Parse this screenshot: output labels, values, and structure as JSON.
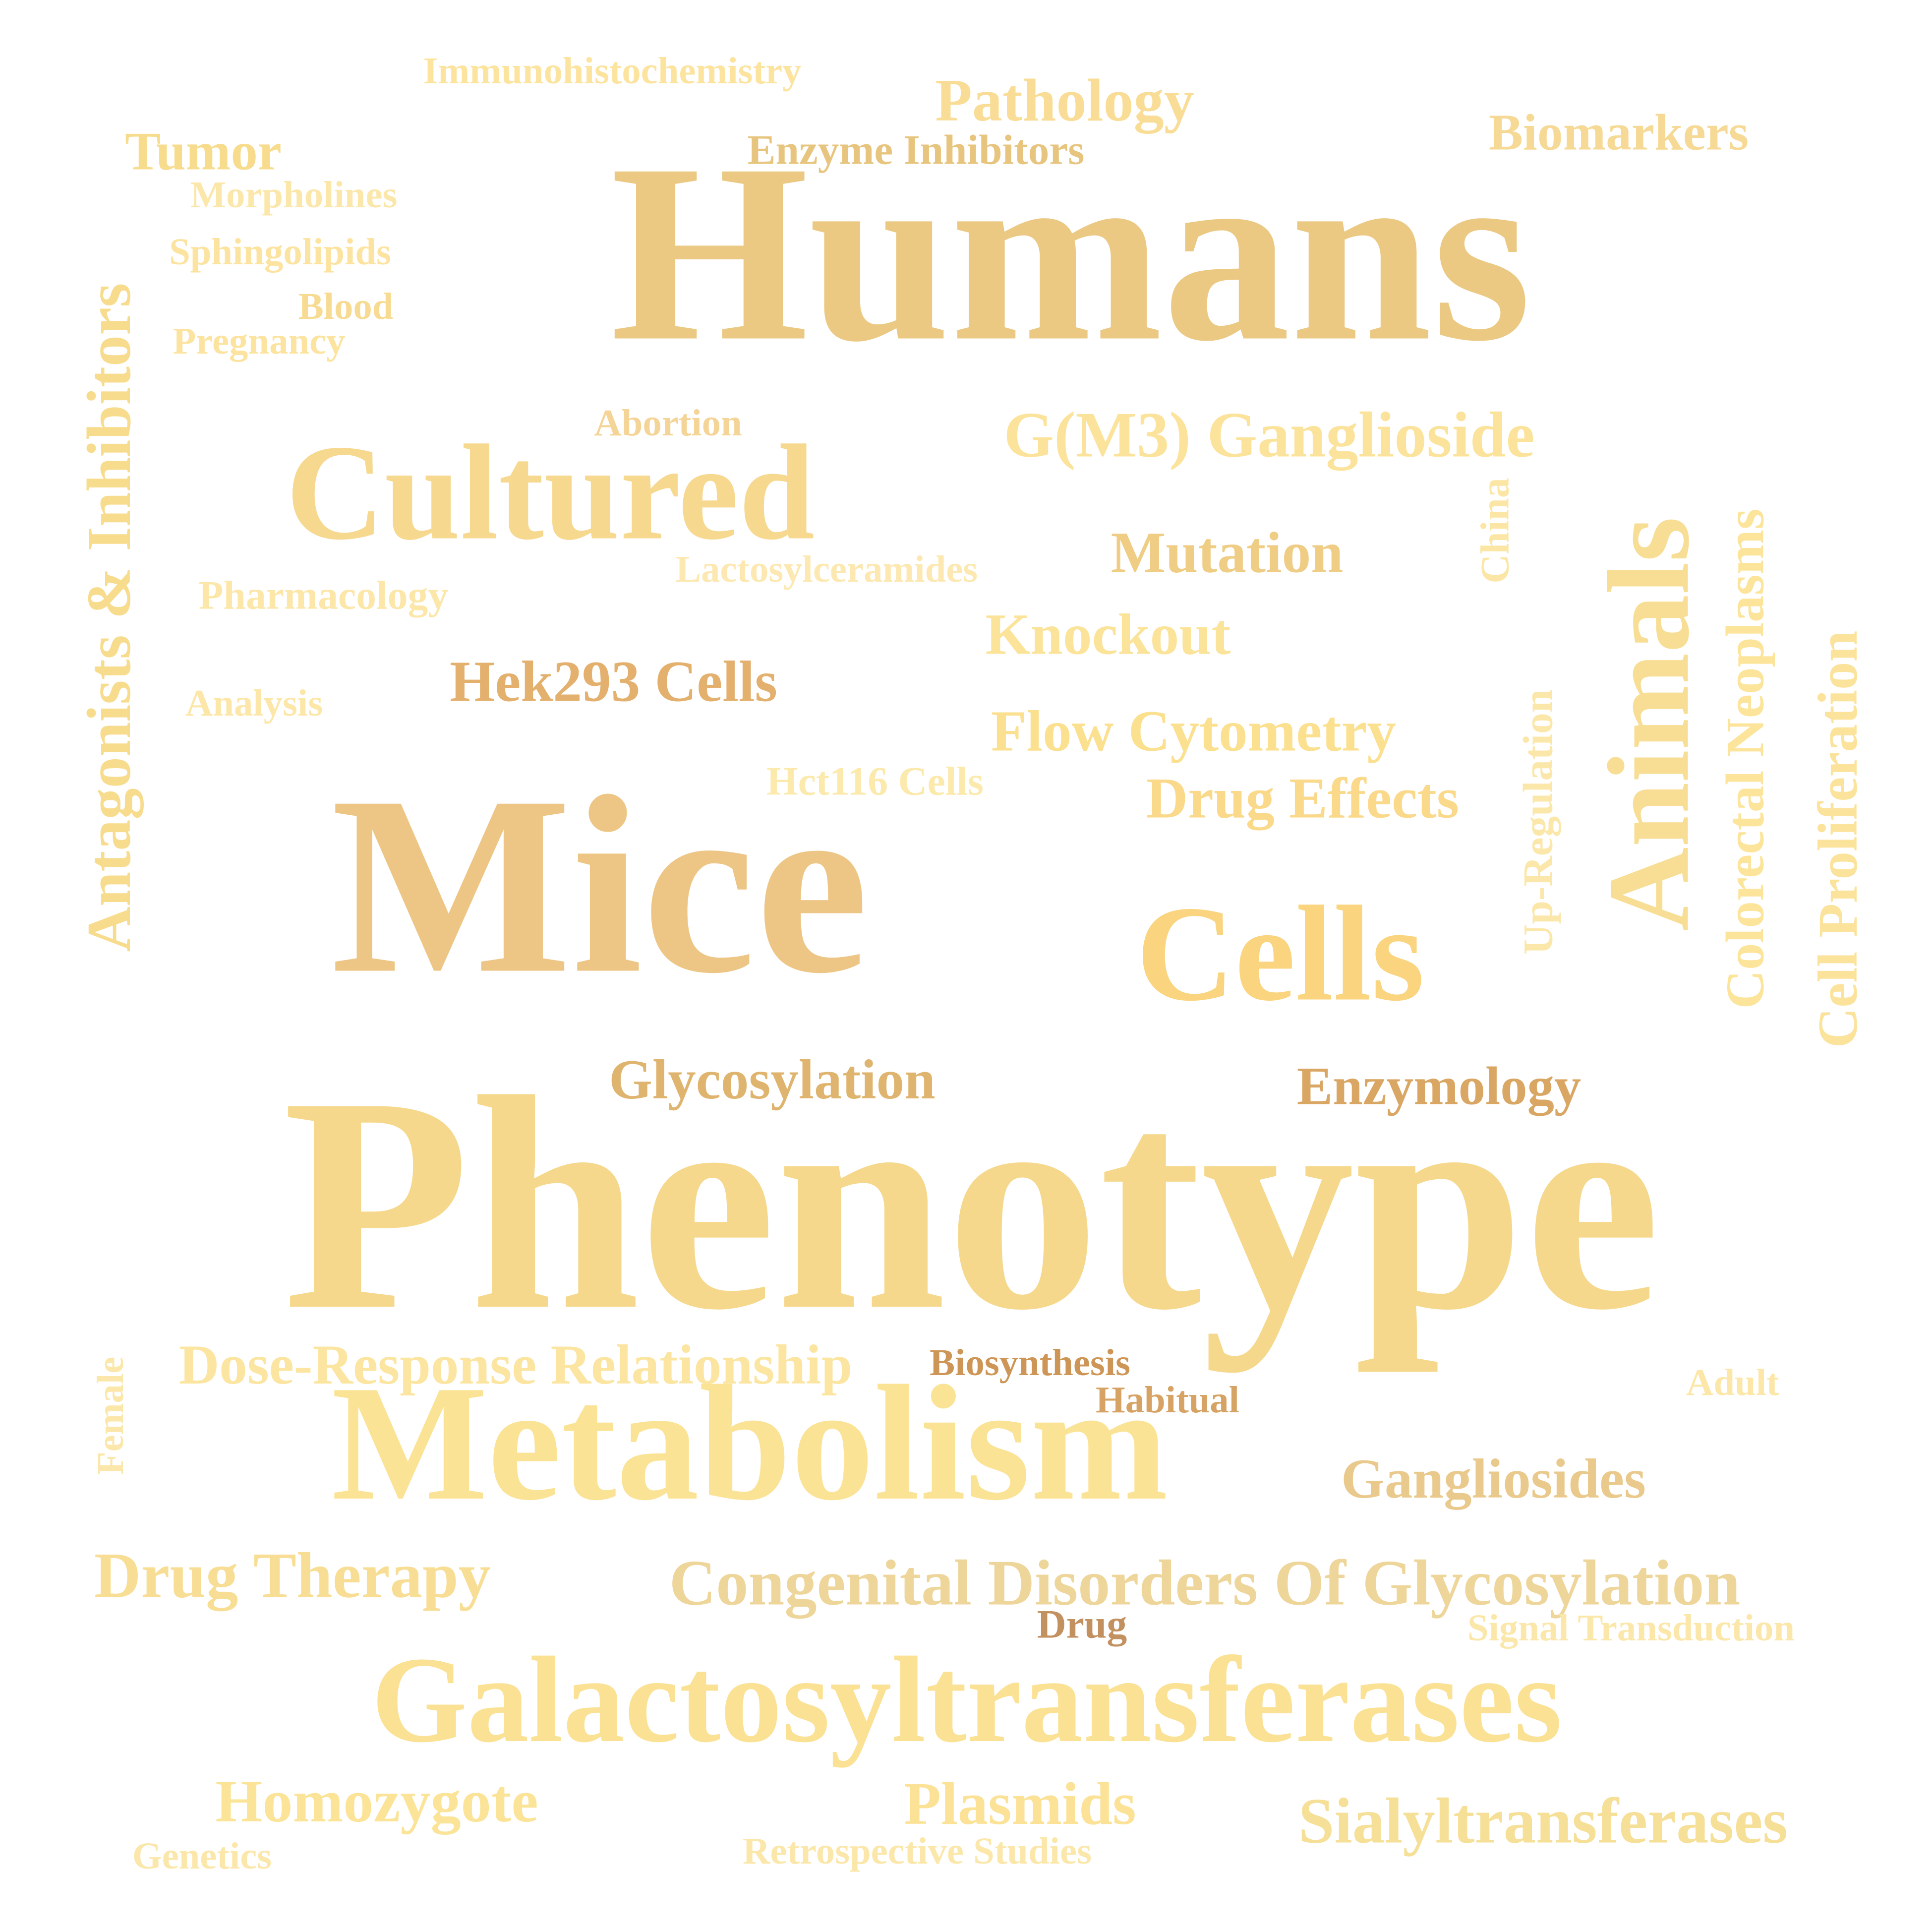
{
  "palette": {
    "gold": "#EBC983",
    "light_gold": "#F8DC8E",
    "pale_yellow": "#FBE49A",
    "amber": "#E7B86E",
    "tan": "#D9A868",
    "brown": "#C59259"
  },
  "words": [
    {
      "id": "humans",
      "text": "Humans",
      "color": "#EBC983"
    },
    {
      "id": "phenotype",
      "text": "Phenotype",
      "color": "#F5D88C"
    },
    {
      "id": "mice",
      "text": "Mice",
      "color": "#EDC685"
    },
    {
      "id": "galactosyltransferases",
      "text": "Galactosyltransferases",
      "color": "#FBE193"
    },
    {
      "id": "metabolism",
      "text": "Metabolism",
      "color": "#FBE396"
    },
    {
      "id": "cultured",
      "text": "Cultured",
      "color": "#F6D88E"
    },
    {
      "id": "animals",
      "text": "Animals",
      "color": "#F7DE94"
    },
    {
      "id": "cells",
      "text": "Cells",
      "color": "#FAD47E"
    },
    {
      "id": "congenital-disorders",
      "text": "Congenital Disorders Of Glycosylation",
      "color": "#EED69B"
    },
    {
      "id": "gm3-ganglioside",
      "text": "G(M3) Ganglioside",
      "color": "#FCE39B"
    },
    {
      "id": "antagonists-inhibitors",
      "text": "Antagonists & Inhibitors",
      "color": "#F8DC8E"
    },
    {
      "id": "drug-therapy",
      "text": "Drug Therapy",
      "color": "#F8DE94"
    },
    {
      "id": "dose-response",
      "text": "Dose-Response Relationship",
      "color": "#FBE5A0"
    },
    {
      "id": "sialyltransferases",
      "text": "Sialyltransferases",
      "color": "#F6DF97"
    },
    {
      "id": "colorectal-neoplasms",
      "text": "Colorectal Neoplasms",
      "color": "#FCE49A"
    },
    {
      "id": "cell-proliferation",
      "text": "Cell Proliferation",
      "color": "#FCE39C"
    },
    {
      "id": "flow-cytometry",
      "text": "Flow Cytometry",
      "color": "#FBE08F"
    },
    {
      "id": "drug-effects",
      "text": "Drug Effects",
      "color": "#FAD98B"
    },
    {
      "id": "glycosylation",
      "text": "Glycosylation",
      "color": "#DFB46F"
    },
    {
      "id": "enzymology",
      "text": "Enzymology",
      "color": "#D9A663"
    },
    {
      "id": "gangliosides",
      "text": "Gangliosides",
      "color": "#EAC98D"
    },
    {
      "id": "pathology",
      "text": "Pathology",
      "color": "#F9DD96"
    },
    {
      "id": "biomarkers",
      "text": "Biomarkers",
      "color": "#F6D995"
    },
    {
      "id": "tumor",
      "text": "Tumor",
      "color": "#F8DC8E"
    },
    {
      "id": "mutation",
      "text": "Mutation",
      "color": "#EFCD85"
    },
    {
      "id": "knockout",
      "text": "Knockout",
      "color": "#FBE49A"
    },
    {
      "id": "hek293-cells",
      "text": "Hek293 Cells",
      "color": "#E3B06E"
    },
    {
      "id": "homozygote",
      "text": "Homozygote",
      "color": "#FBE497"
    },
    {
      "id": "plasmids",
      "text": "Plasmids",
      "color": "#FBE296"
    },
    {
      "id": "enzyme-inhibitors",
      "text": "Enzyme Inhibitors",
      "color": "#E7C57E"
    },
    {
      "id": "lactosylceramides",
      "text": "Lactosylceramides",
      "color": "#FCE8B0"
    },
    {
      "id": "pharmacology",
      "text": "Pharmacology",
      "color": "#FCE6A8"
    },
    {
      "id": "hct116-cells",
      "text": "Hct116 Cells",
      "color": "#FCE9AC"
    },
    {
      "id": "signal-transduction",
      "text": "Signal Transduction",
      "color": "#FCE7AA"
    },
    {
      "id": "immunohistochemistry",
      "text": "Immunohistochemistry",
      "color": "#FCE49F"
    },
    {
      "id": "morpholines",
      "text": "Morpholines",
      "color": "#FCE7AA"
    },
    {
      "id": "sphingolipids",
      "text": "Sphingolipids",
      "color": "#FCE3A0"
    },
    {
      "id": "blood",
      "text": "Blood",
      "color": "#F8DB92"
    },
    {
      "id": "pregnancy",
      "text": "Pregnancy",
      "color": "#FCE39F"
    },
    {
      "id": "abortion",
      "text": "Abortion",
      "color": "#F5D497"
    },
    {
      "id": "analysis",
      "text": "Analysis",
      "color": "#FCE7A8"
    },
    {
      "id": "up-regulation",
      "text": "Up-Regulation",
      "color": "#FCE7AA"
    },
    {
      "id": "china",
      "text": "China",
      "color": "#FCE6A6"
    },
    {
      "id": "biosynthesis",
      "text": "Biosynthesis",
      "color": "#CE9656"
    },
    {
      "id": "habitual",
      "text": "Habitual",
      "color": "#D7A364"
    },
    {
      "id": "adult",
      "text": "Adult",
      "color": "#FCE7A8"
    },
    {
      "id": "female",
      "text": "Female",
      "color": "#FCE7AA"
    },
    {
      "id": "drug",
      "text": "Drug",
      "color": "#C39060"
    },
    {
      "id": "retrospective-studies",
      "text": "Retrospective Studies",
      "color": "#FCE7AA"
    },
    {
      "id": "genetics",
      "text": "Genetics",
      "color": "#FCE7AA"
    }
  ]
}
